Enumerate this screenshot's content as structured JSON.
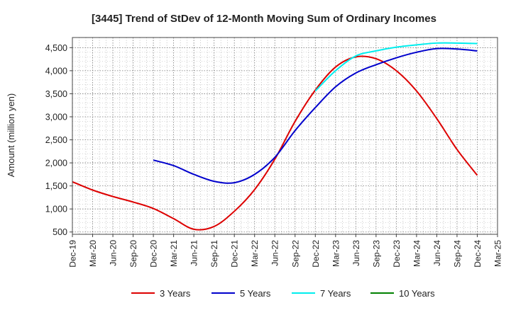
{
  "chart_data": {
    "type": "line",
    "title": "[3445]  Trend of StDev of 12-Month Moving Sum of Ordinary Incomes",
    "xlabel": "",
    "ylabel": "Amount (million yen)",
    "ylim": [
      450,
      4720
    ],
    "yticks": [
      500,
      1000,
      1500,
      2000,
      2500,
      3000,
      3500,
      4000,
      4500
    ],
    "ytick_labels": [
      "500",
      "1,000",
      "1,500",
      "2,000",
      "2,500",
      "3,000",
      "3,500",
      "4,000",
      "4,500"
    ],
    "categories": [
      "Dec-19",
      "Mar-20",
      "Jun-20",
      "Sep-20",
      "Dec-20",
      "Mar-21",
      "Jun-21",
      "Sep-21",
      "Dec-21",
      "Mar-22",
      "Jun-22",
      "Sep-22",
      "Dec-22",
      "Mar-23",
      "Jun-23",
      "Sep-23",
      "Dec-23",
      "Mar-24",
      "Jun-24",
      "Sep-24",
      "Dec-24",
      "Mar-25"
    ],
    "grid": true,
    "legend_position": "bottom",
    "series": [
      {
        "name": "3 Years",
        "color": "#dd0000",
        "values": [
          1590,
          1410,
          1270,
          1150,
          1010,
          790,
          560,
          620,
          950,
          1420,
          2080,
          2900,
          3580,
          4080,
          4300,
          4260,
          4000,
          3560,
          2960,
          2290,
          1730,
          null
        ]
      },
      {
        "name": "5 Years",
        "color": "#0000cc",
        "values": [
          null,
          null,
          null,
          null,
          2060,
          1940,
          1750,
          1600,
          1570,
          1750,
          2120,
          2700,
          3200,
          3650,
          3950,
          4130,
          4280,
          4400,
          4480,
          4470,
          4430,
          null
        ]
      },
      {
        "name": "7 Years",
        "color": "#00eeee",
        "values": [
          null,
          null,
          null,
          null,
          null,
          null,
          null,
          null,
          null,
          null,
          null,
          null,
          3560,
          4000,
          4320,
          4430,
          4510,
          4560,
          4600,
          4600,
          4590,
          null
        ]
      },
      {
        "name": "10 Years",
        "color": "#008000",
        "values": [
          null,
          null,
          null,
          null,
          null,
          null,
          null,
          null,
          null,
          null,
          null,
          null,
          null,
          null,
          null,
          null,
          null,
          null,
          null,
          null,
          null,
          null
        ]
      }
    ]
  }
}
